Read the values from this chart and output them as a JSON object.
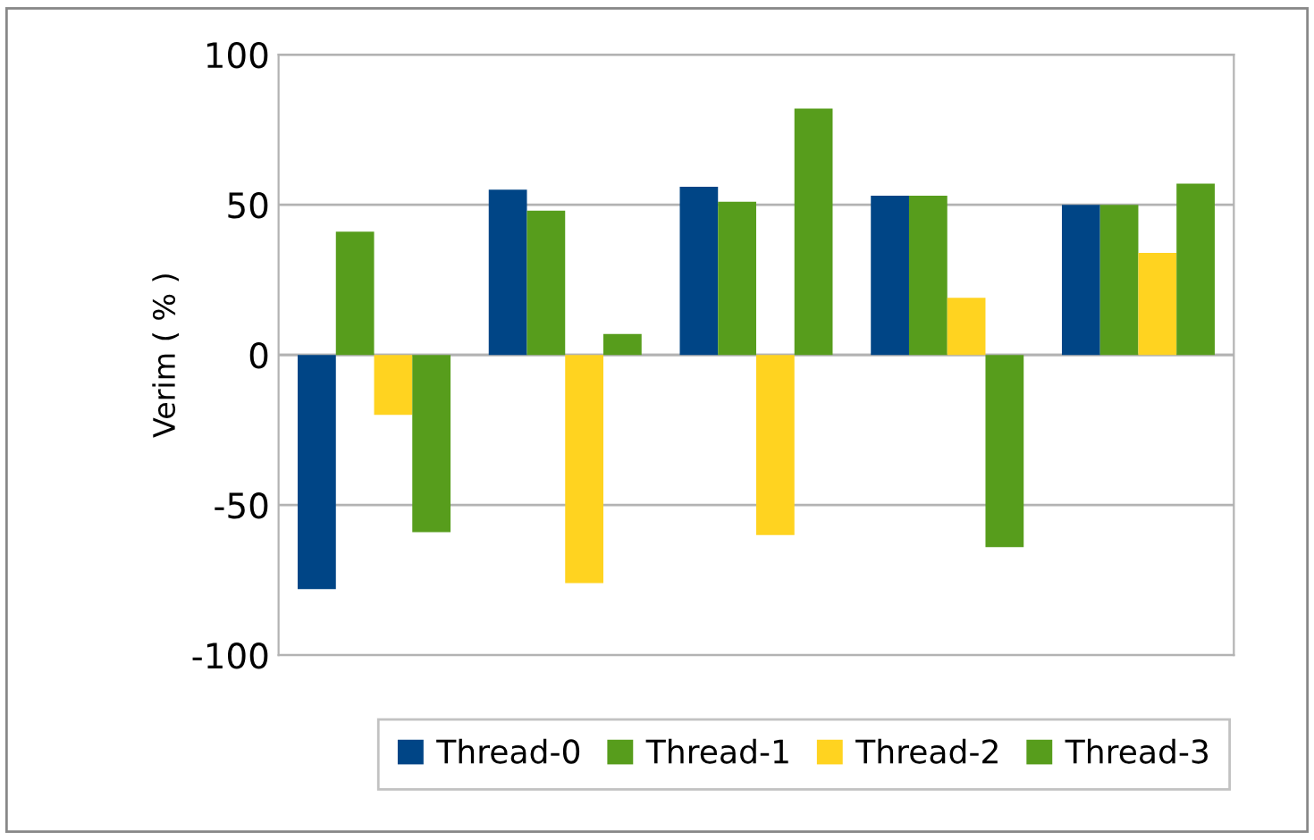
{
  "chart_data": {
    "type": "bar",
    "ylabel": "Verim ( % )",
    "categories": [
      null,
      null,
      null,
      null,
      null
    ],
    "series": [
      {
        "name": "Thread-0",
        "color": "#004586",
        "values": [
          -78,
          55,
          56,
          53,
          50
        ]
      },
      {
        "name": "Thread-1",
        "color": "#579d1c",
        "values": [
          41,
          48,
          51,
          53,
          50
        ]
      },
      {
        "name": "Thread-2",
        "color": "#ffd320",
        "values": [
          -20,
          -76,
          -60,
          19,
          34
        ]
      },
      {
        "name": "Thread-3",
        "color": "#579d1c",
        "values": [
          -59,
          7,
          82,
          -64,
          57
        ]
      }
    ],
    "ylim": [
      -100,
      100
    ],
    "yticks": [
      -100,
      -50,
      0,
      50,
      100
    ],
    "grid": "y",
    "legend": "bottom",
    "tick_labels": "y"
  }
}
